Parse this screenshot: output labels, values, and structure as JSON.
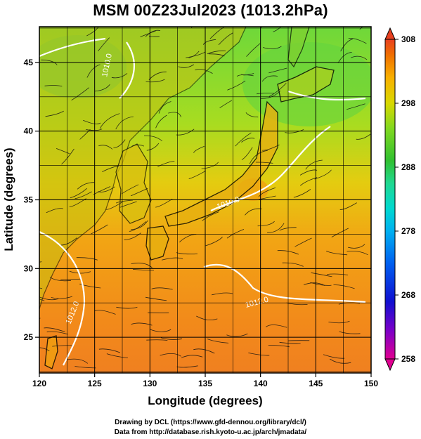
{
  "title": "MSM 00Z23Jul2023 (1013.2hPa)",
  "chart_data": {
    "type": "map",
    "xlabel": "Longitude (degrees)",
    "ylabel": "Latitude  (degrees)",
    "xlim": [
      120,
      150
    ],
    "ylim": [
      22.4,
      47.6
    ],
    "xticks": [
      120,
      125,
      130,
      135,
      140,
      145,
      150
    ],
    "yticks": [
      25,
      30,
      35,
      40,
      45
    ],
    "grid": true,
    "colorbar": {
      "min": 258,
      "max": 308,
      "tick_values": [
        308,
        298,
        288,
        278,
        268,
        258
      ],
      "colors": [
        "#e00090",
        "#5a00c8",
        "#0010d0",
        "#0070f0",
        "#00c8e0",
        "#20d8a0",
        "#30c030",
        "#80d820",
        "#d8d800",
        "#f8b000",
        "#f07000",
        "#e84020"
      ]
    },
    "contour_labels": [
      "1012.0",
      "1010.0",
      "1012.0",
      "1010.0"
    ]
  },
  "credits": {
    "line1": "Drawing by DCL (https://www.gfd-dennou.org/library/dcl/)",
    "line2": "Data from http://database.rish.kyoto-u.ac.jp/arch/jmadata/"
  }
}
